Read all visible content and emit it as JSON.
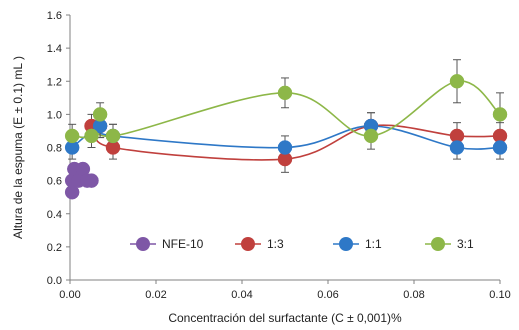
{
  "chart_data": {
    "type": "scatter",
    "xlabel": "Concentración del surfactante (C ± 0,001)%",
    "ylabel": "Altura de la espuma (E ± 0.1) mL )",
    "xlim": [
      0,
      0.1
    ],
    "ylim": [
      0,
      1.6
    ],
    "x_ticks": [
      "0.00",
      "0.02",
      "0.04",
      "0.06",
      "0.08",
      "0.10"
    ],
    "y_ticks": [
      "0.0",
      "0.2",
      "0.4",
      "0.6",
      "0.8",
      "1.0",
      "1.2",
      "1.4",
      "1.6"
    ],
    "grid": false,
    "legend_position": "bottom-inside",
    "series": [
      {
        "name": "NFE-10",
        "color": "#7e57a6",
        "smooth_line": false,
        "points": [
          {
            "x": 0.0005,
            "y": 0.53
          },
          {
            "x": 0.0005,
            "y": 0.6
          },
          {
            "x": 0.001,
            "y": 0.67
          },
          {
            "x": 0.002,
            "y": 0.6
          },
          {
            "x": 0.003,
            "y": 0.67
          },
          {
            "x": 0.004,
            "y": 0.6
          },
          {
            "x": 0.005,
            "y": 0.6
          }
        ]
      },
      {
        "name": "1:3",
        "color": "#c0403d",
        "smooth_line": true,
        "points": [
          {
            "x": 0.005,
            "y": 0.93,
            "err": 0.07
          },
          {
            "x": 0.007,
            "y": 0.93,
            "err": 0.07
          },
          {
            "x": 0.01,
            "y": 0.8,
            "err": 0.07
          },
          {
            "x": 0.05,
            "y": 0.73,
            "err": 0.08
          },
          {
            "x": 0.07,
            "y": 0.93,
            "err": 0.08
          },
          {
            "x": 0.09,
            "y": 0.87,
            "err": 0.08
          },
          {
            "x": 0.1,
            "y": 0.87,
            "err": 0.08
          }
        ]
      },
      {
        "name": "1:1",
        "color": "#2e78c7",
        "smooth_line": true,
        "points": [
          {
            "x": 0.0005,
            "y": 0.8,
            "err": 0.07
          },
          {
            "x": 0.007,
            "y": 0.93,
            "err": 0.07
          },
          {
            "x": 0.01,
            "y": 0.87,
            "err": 0.07
          },
          {
            "x": 0.05,
            "y": 0.8,
            "err": 0.07
          },
          {
            "x": 0.07,
            "y": 0.93,
            "err": 0.08
          },
          {
            "x": 0.09,
            "y": 0.8,
            "err": 0.07
          },
          {
            "x": 0.1,
            "y": 0.8,
            "err": 0.07
          }
        ]
      },
      {
        "name": "3:1",
        "color": "#8db748",
        "smooth_line": true,
        "points": [
          {
            "x": 0.0005,
            "y": 0.87,
            "err": 0.07
          },
          {
            "x": 0.005,
            "y": 0.87,
            "err": 0.07
          },
          {
            "x": 0.007,
            "y": 1.0,
            "err": 0.07
          },
          {
            "x": 0.01,
            "y": 0.87,
            "err": 0.07
          },
          {
            "x": 0.05,
            "y": 1.13,
            "err": 0.09
          },
          {
            "x": 0.07,
            "y": 0.87,
            "err": 0.08
          },
          {
            "x": 0.09,
            "y": 1.2,
            "err": 0.13
          },
          {
            "x": 0.1,
            "y": 1.0,
            "err": 0.13
          }
        ]
      }
    ]
  }
}
